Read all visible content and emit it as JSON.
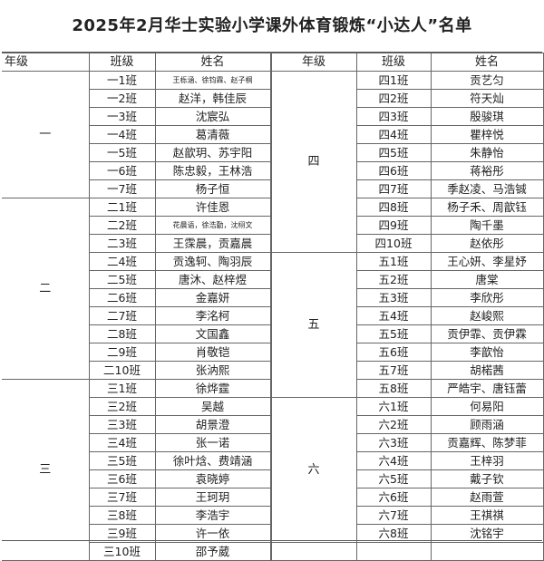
{
  "title": "2025年2月华士实验小学课外体育锻炼“小达人”名单",
  "headers": {
    "grade": "年级",
    "class": "班级",
    "name": "姓名"
  },
  "left": [
    {
      "grade": "一",
      "rows": [
        {
          "class": "一1班",
          "name": "王栎涵、徐钧霖、赵子桐",
          "small": true
        },
        {
          "class": "一2班",
          "name": "赵洋，韩佳辰"
        },
        {
          "class": "一3班",
          "name": "沈宸弘"
        },
        {
          "class": "一4班",
          "name": "葛清薇"
        },
        {
          "class": "一5班",
          "name": "赵歆玥、苏宇阳"
        },
        {
          "class": "一6班",
          "name": "陈忠毅，王林浩"
        },
        {
          "class": "一7班",
          "name": "杨子恒"
        }
      ]
    },
    {
      "grade": "二",
      "rows": [
        {
          "class": "二1班",
          "name": "许佳恩"
        },
        {
          "class": "二2班",
          "name": "花晨语，徐浩勤，沈栩文",
          "small": true
        },
        {
          "class": "二3班",
          "name": "王霂晨，贡嘉晨"
        },
        {
          "class": "二4班",
          "name": "贡逸轲、陶羽辰"
        },
        {
          "class": "二5班",
          "name": "唐沐、赵梓煜"
        },
        {
          "class": "二6班",
          "name": "金嘉妍"
        },
        {
          "class": "二7班",
          "name": "李洺柯"
        },
        {
          "class": "二8班",
          "name": "文国鑫"
        },
        {
          "class": "二9班",
          "name": "肖敬铠"
        },
        {
          "class": "二10班",
          "name": "张汭熙"
        }
      ]
    },
    {
      "grade": "三",
      "rows": [
        {
          "class": "三1班",
          "name": "徐烨霆"
        },
        {
          "class": "三2班",
          "name": "吴越"
        },
        {
          "class": "三3班",
          "name": "胡景澄"
        },
        {
          "class": "三4班",
          "name": "张一诺"
        },
        {
          "class": "三5班",
          "name": "徐叶焓、费靖涵"
        },
        {
          "class": "三6班",
          "name": "袁晓婷"
        },
        {
          "class": "三7班",
          "name": "王珂玥"
        },
        {
          "class": "三8班",
          "name": "李浩宇"
        },
        {
          "class": "三9班",
          "name": "许一依"
        },
        {
          "class": "三10班",
          "name": "邵予葳"
        }
      ]
    }
  ],
  "right": [
    {
      "grade": "四",
      "rows": [
        {
          "class": "四1班",
          "name": "贡艺匀"
        },
        {
          "class": "四2班",
          "name": "符天灿"
        },
        {
          "class": "四3班",
          "name": "殷骏琪"
        },
        {
          "class": "四4班",
          "name": "瞿梓悦"
        },
        {
          "class": "四5班",
          "name": "朱静怡"
        },
        {
          "class": "四6班",
          "name": "蒋裕彤"
        },
        {
          "class": "四7班",
          "name": "季赵凌、马浩铖"
        },
        {
          "class": "四8班",
          "name": "杨子禾、周歆钰"
        },
        {
          "class": "四9班",
          "name": "陶千墨"
        },
        {
          "class": "四10班",
          "name": "赵依彤"
        }
      ]
    },
    {
      "grade": "五",
      "rows": [
        {
          "class": "五1班",
          "name": "王心妍、李星妤"
        },
        {
          "class": "五2班",
          "name": "唐棠"
        },
        {
          "class": "五3班",
          "name": "李欣彤"
        },
        {
          "class": "五4班",
          "name": "赵峻熙"
        },
        {
          "class": "五5班",
          "name": "贡伊霏、贡伊霖"
        },
        {
          "class": "五6班",
          "name": "李歆怡"
        },
        {
          "class": "五7班",
          "name": "胡楉茜"
        },
        {
          "class": "五8班",
          "name": "严皓宇、唐钰蕾"
        }
      ]
    },
    {
      "grade": "六",
      "rows": [
        {
          "class": "六1班",
          "name": "何易阳"
        },
        {
          "class": "六2班",
          "name": "顾雨涵"
        },
        {
          "class": "六3班",
          "name": "贡嘉辉、陈梦菲"
        },
        {
          "class": "六4班",
          "name": "王梓羽"
        },
        {
          "class": "六5班",
          "name": "戴子钦"
        },
        {
          "class": "六6班",
          "name": "赵雨萱"
        },
        {
          "class": "六7班",
          "name": "王祺祺"
        },
        {
          "class": "六8班",
          "name": "沈铭宇"
        }
      ]
    },
    {
      "grade": "",
      "rows": [
        {
          "class": "",
          "name": ""
        }
      ]
    }
  ]
}
